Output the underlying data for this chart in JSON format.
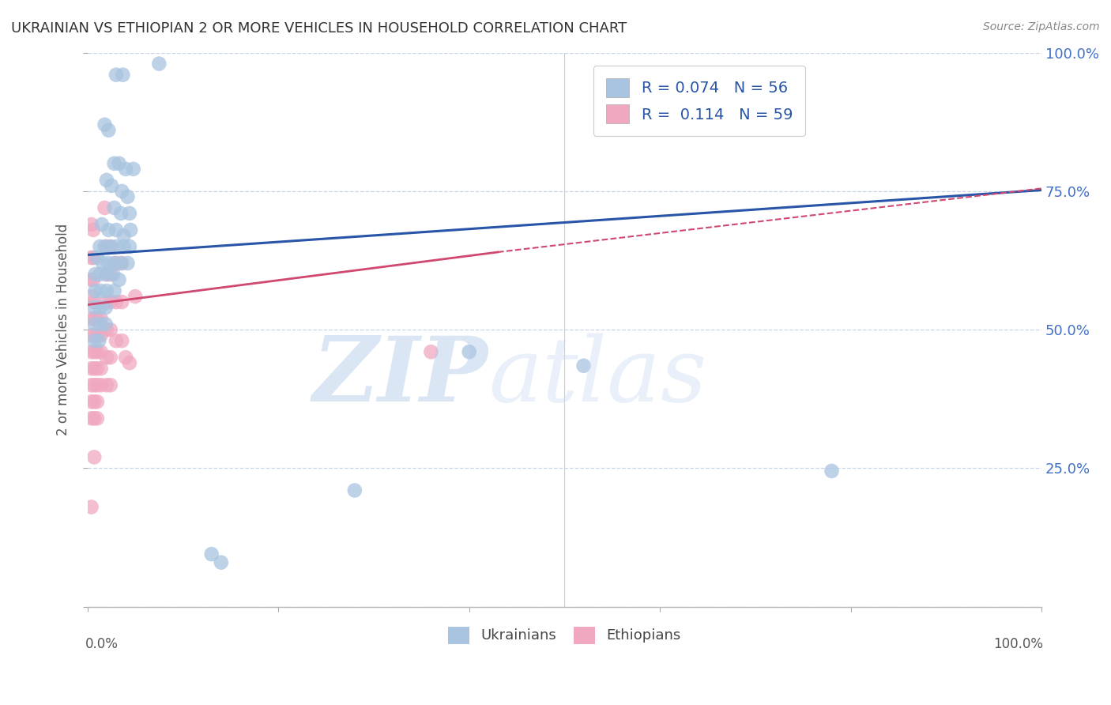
{
  "title": "UKRAINIAN VS ETHIOPIAN 2 OR MORE VEHICLES IN HOUSEHOLD CORRELATION CHART",
  "source": "Source: ZipAtlas.com",
  "ylabel": "2 or more Vehicles in Household",
  "xlim": [
    0.0,
    1.0
  ],
  "ylim": [
    0.0,
    1.0
  ],
  "ytick_vals": [
    0.0,
    0.25,
    0.5,
    0.75,
    1.0
  ],
  "watermark_zip": "ZIP",
  "watermark_atlas": "atlas",
  "legend_blue_R": "R = 0.074",
  "legend_blue_N": "N = 56",
  "legend_pink_R": "R =  0.114",
  "legend_pink_N": "N = 59",
  "blue_color": "#a8c4e0",
  "pink_color": "#f0a8c0",
  "blue_line_color": "#2855a8",
  "pink_line_color": "#d04870",
  "blue_scatter": [
    [
      0.03,
      0.96
    ],
    [
      0.037,
      0.96
    ],
    [
      0.018,
      0.87
    ],
    [
      0.022,
      0.86
    ],
    [
      0.028,
      0.8
    ],
    [
      0.033,
      0.8
    ],
    [
      0.04,
      0.79
    ],
    [
      0.048,
      0.79
    ],
    [
      0.02,
      0.77
    ],
    [
      0.025,
      0.76
    ],
    [
      0.036,
      0.75
    ],
    [
      0.042,
      0.74
    ],
    [
      0.028,
      0.72
    ],
    [
      0.035,
      0.71
    ],
    [
      0.044,
      0.71
    ],
    [
      0.015,
      0.69
    ],
    [
      0.022,
      0.68
    ],
    [
      0.03,
      0.68
    ],
    [
      0.038,
      0.67
    ],
    [
      0.045,
      0.68
    ],
    [
      0.013,
      0.65
    ],
    [
      0.018,
      0.65
    ],
    [
      0.024,
      0.65
    ],
    [
      0.03,
      0.65
    ],
    [
      0.038,
      0.65
    ],
    [
      0.044,
      0.65
    ],
    [
      0.01,
      0.63
    ],
    [
      0.016,
      0.62
    ],
    [
      0.022,
      0.62
    ],
    [
      0.028,
      0.62
    ],
    [
      0.035,
      0.62
    ],
    [
      0.042,
      0.62
    ],
    [
      0.008,
      0.6
    ],
    [
      0.013,
      0.6
    ],
    [
      0.02,
      0.6
    ],
    [
      0.027,
      0.6
    ],
    [
      0.033,
      0.59
    ],
    [
      0.008,
      0.57
    ],
    [
      0.014,
      0.57
    ],
    [
      0.02,
      0.57
    ],
    [
      0.028,
      0.57
    ],
    [
      0.007,
      0.54
    ],
    [
      0.013,
      0.54
    ],
    [
      0.019,
      0.54
    ],
    [
      0.007,
      0.51
    ],
    [
      0.013,
      0.51
    ],
    [
      0.019,
      0.51
    ],
    [
      0.007,
      0.48
    ],
    [
      0.012,
      0.48
    ],
    [
      0.075,
      0.98
    ],
    [
      0.4,
      0.46
    ],
    [
      0.52,
      0.435
    ],
    [
      0.78,
      0.245
    ],
    [
      0.28,
      0.21
    ],
    [
      0.14,
      0.08
    ],
    [
      0.13,
      0.095
    ]
  ],
  "pink_scatter": [
    [
      0.004,
      0.69
    ],
    [
      0.006,
      0.68
    ],
    [
      0.004,
      0.63
    ],
    [
      0.006,
      0.63
    ],
    [
      0.004,
      0.59
    ],
    [
      0.006,
      0.59
    ],
    [
      0.005,
      0.56
    ],
    [
      0.007,
      0.55
    ],
    [
      0.004,
      0.52
    ],
    [
      0.007,
      0.52
    ],
    [
      0.01,
      0.52
    ],
    [
      0.014,
      0.52
    ],
    [
      0.004,
      0.49
    ],
    [
      0.007,
      0.49
    ],
    [
      0.01,
      0.49
    ],
    [
      0.014,
      0.49
    ],
    [
      0.004,
      0.46
    ],
    [
      0.007,
      0.46
    ],
    [
      0.01,
      0.46
    ],
    [
      0.014,
      0.46
    ],
    [
      0.004,
      0.43
    ],
    [
      0.007,
      0.43
    ],
    [
      0.01,
      0.43
    ],
    [
      0.014,
      0.43
    ],
    [
      0.004,
      0.4
    ],
    [
      0.007,
      0.4
    ],
    [
      0.01,
      0.4
    ],
    [
      0.014,
      0.4
    ],
    [
      0.004,
      0.37
    ],
    [
      0.007,
      0.37
    ],
    [
      0.01,
      0.37
    ],
    [
      0.004,
      0.34
    ],
    [
      0.007,
      0.34
    ],
    [
      0.01,
      0.34
    ],
    [
      0.018,
      0.72
    ],
    [
      0.02,
      0.65
    ],
    [
      0.024,
      0.65
    ],
    [
      0.02,
      0.6
    ],
    [
      0.024,
      0.6
    ],
    [
      0.02,
      0.55
    ],
    [
      0.024,
      0.55
    ],
    [
      0.02,
      0.5
    ],
    [
      0.024,
      0.5
    ],
    [
      0.02,
      0.45
    ],
    [
      0.024,
      0.45
    ],
    [
      0.02,
      0.4
    ],
    [
      0.024,
      0.4
    ],
    [
      0.03,
      0.62
    ],
    [
      0.036,
      0.62
    ],
    [
      0.03,
      0.55
    ],
    [
      0.036,
      0.55
    ],
    [
      0.03,
      0.48
    ],
    [
      0.036,
      0.48
    ],
    [
      0.04,
      0.45
    ],
    [
      0.044,
      0.44
    ],
    [
      0.05,
      0.56
    ],
    [
      0.36,
      0.46
    ],
    [
      0.007,
      0.27
    ],
    [
      0.004,
      0.18
    ]
  ],
  "blue_line": [
    0.0,
    1.0,
    0.635,
    0.752
  ],
  "pink_line": [
    0.0,
    0.43,
    0.545,
    0.64
  ],
  "pink_dash_line": [
    0.43,
    1.0,
    0.64,
    0.755
  ],
  "background_color": "#ffffff",
  "grid_color": "#c8d4e8",
  "title_color": "#333333",
  "right_axis_color": "#4070c8",
  "legend_text_color": "#2855a8",
  "bottom_label_color": "#555555"
}
